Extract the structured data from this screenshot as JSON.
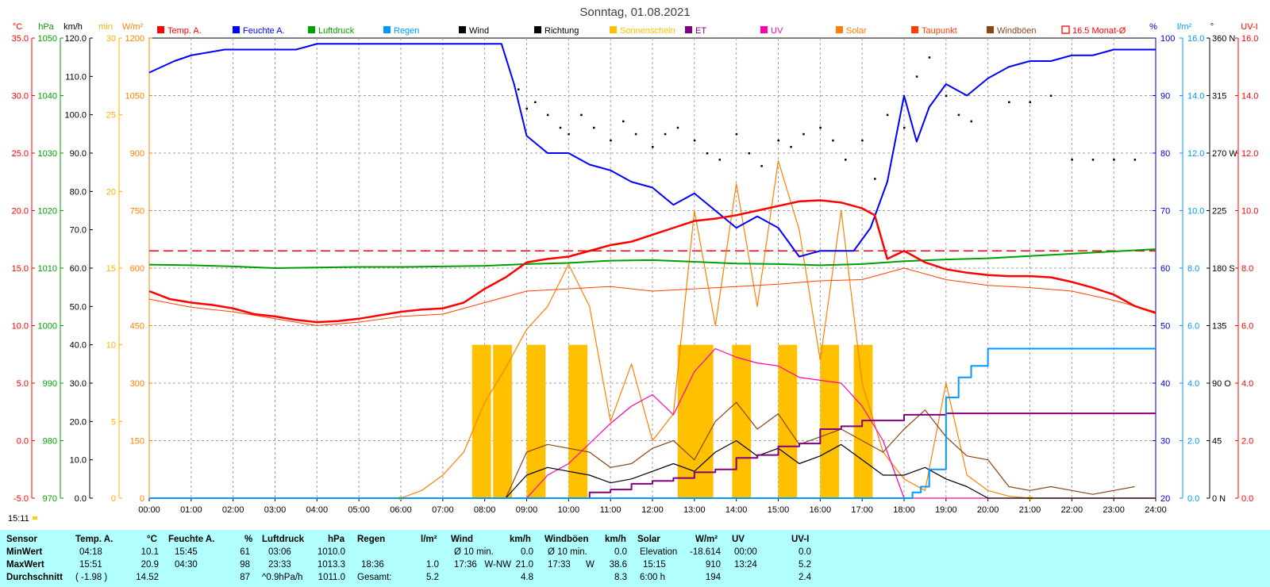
{
  "chart_data": {
    "type": "line",
    "title": "Sonntag, 01.08.2021",
    "legend": [
      {
        "name": "Temp. A.",
        "color": "#ff0000"
      },
      {
        "name": "Feuchte A.",
        "color": "#0000ff"
      },
      {
        "name": "Luftdruck",
        "color": "#00a000"
      },
      {
        "name": "Regen",
        "color": "#0099ff"
      },
      {
        "name": "Wind",
        "color": "#000000"
      },
      {
        "name": "Richtung",
        "color": "#000000"
      },
      {
        "name": "Sonnenschein",
        "color": "#ffc000"
      },
      {
        "name": "ET",
        "color": "#800080"
      },
      {
        "name": "UV",
        "color": "#ff00aa"
      },
      {
        "name": "Solar",
        "color": "#ff8000"
      },
      {
        "name": "Taupunkt",
        "color": "#ff4000"
      },
      {
        "name": "Windböen",
        "color": "#8b4513"
      },
      {
        "name": "16.5 Monat-Ø",
        "color": "#ff0000"
      }
    ],
    "x_ticks": [
      "00:00",
      "01:00",
      "02:00",
      "03:00",
      "04:00",
      "05:00",
      "06:00",
      "07:00",
      "08:00",
      "09:00",
      "10:00",
      "11:00",
      "12:00",
      "13:00",
      "14:00",
      "15:00",
      "16:00",
      "17:00",
      "18:00",
      "19:00",
      "20:00",
      "21:00",
      "22:00",
      "23:00",
      "24:00"
    ],
    "left_axes": [
      {
        "unit": "°C",
        "color": "#ff0000",
        "ticks": [
          "35.0",
          "30.0",
          "25.0",
          "20.0",
          "15.0",
          "10.0",
          "5.0",
          "0.0",
          "-5.0"
        ]
      },
      {
        "unit": "hPa",
        "color": "#00a000",
        "ticks": [
          "1050",
          "1040",
          "1030",
          "1020",
          "1010",
          "1000",
          "990",
          "980",
          "970"
        ]
      },
      {
        "unit": "km/h",
        "color": "#000000",
        "ticks": [
          "120.0",
          "110.0",
          "100.0",
          "90.0",
          "80.0",
          "70.0",
          "60.0",
          "50.0",
          "40.0",
          "30.0",
          "20.0",
          "10.0",
          "0.0"
        ]
      },
      {
        "unit": "min",
        "color": "#ffb000",
        "ticks": [
          "30",
          "25",
          "20",
          "15",
          "10",
          "5",
          "0"
        ]
      },
      {
        "unit": "W/m²",
        "color": "#ff8000",
        "ticks": [
          "1200",
          "1050",
          "900",
          "750",
          "600",
          "450",
          "300",
          "150",
          "0"
        ]
      }
    ],
    "right_axes": [
      {
        "unit": "%",
        "color": "#0000c0",
        "ticks": [
          "100",
          "90",
          "80",
          "70",
          "60",
          "50",
          "40",
          "30",
          "20"
        ]
      },
      {
        "unit": "l/m²",
        "color": "#0099ff",
        "ticks": [
          "16.0",
          "14.0",
          "12.0",
          "10.0",
          "8.0",
          "6.0",
          "4.0",
          "2.0",
          "0.0"
        ]
      },
      {
        "unit": "°",
        "color": "#000000",
        "ticks": [
          "360 N",
          "315",
          "270 W",
          "225",
          "180 S",
          "135",
          "90 O",
          "45",
          "0 N"
        ]
      },
      {
        "unit": "UV-I",
        "color": "#ff0000",
        "ticks": [
          "16.0",
          "14.0",
          "12.0",
          "10.0",
          "8.0",
          "6.0",
          "4.0",
          "2.0",
          "0.0"
        ]
      }
    ],
    "grid": true,
    "month_avg_temp": 16.5,
    "series": [
      {
        "name": "Temp. A.",
        "unit": "°C",
        "x": [
          0,
          0.5,
          1,
          1.5,
          2,
          2.5,
          3,
          3.5,
          4,
          4.5,
          5,
          5.5,
          6,
          6.5,
          7,
          7.5,
          8,
          8.5,
          9,
          9.5,
          10,
          10.5,
          11,
          11.5,
          12,
          12.5,
          13,
          13.5,
          14,
          14.5,
          15,
          15.5,
          16,
          16.5,
          17,
          17.3,
          17.6,
          18,
          18.5,
          19,
          19.5,
          20,
          20.5,
          21,
          21.5,
          22,
          22.5,
          23,
          23.5,
          24
        ],
        "y": [
          13.0,
          12.3,
          12.0,
          11.8,
          11.5,
          11.0,
          10.8,
          10.5,
          10.3,
          10.4,
          10.6,
          10.9,
          11.2,
          11.4,
          11.5,
          12.0,
          13.2,
          14.2,
          15.5,
          15.8,
          16.0,
          16.5,
          17.0,
          17.3,
          17.9,
          18.5,
          19.1,
          19.3,
          19.6,
          20.0,
          20.4,
          20.8,
          20.9,
          20.7,
          20.2,
          19.6,
          15.8,
          16.5,
          15.5,
          14.9,
          14.6,
          14.4,
          14.3,
          14.3,
          14.2,
          13.8,
          13.3,
          12.7,
          11.7,
          11.1
        ]
      },
      {
        "name": "Feuchte A.",
        "unit": "%",
        "x": [
          0,
          0.3,
          0.6,
          1,
          1.8,
          2.5,
          3,
          3.5,
          4,
          4.5,
          5,
          5.5,
          6,
          6.5,
          7,
          7.5,
          8,
          8.4,
          8.7,
          9,
          9.5,
          10,
          10.5,
          11,
          11.5,
          12,
          12.5,
          13,
          13.5,
          14,
          14.5,
          15,
          15.5,
          16,
          16.5,
          16.8,
          17.2,
          17.6,
          18,
          18.3,
          18.6,
          19,
          19.5,
          20,
          20.5,
          21,
          21.5,
          22,
          22.5,
          23,
          23.5,
          24
        ],
        "y": [
          94,
          95,
          96,
          97,
          98,
          98,
          98,
          98,
          99,
          99,
          99,
          99,
          99,
          99,
          99,
          99,
          99,
          99,
          92,
          83,
          80,
          80,
          78,
          77,
          75,
          74,
          71,
          73,
          70,
          67,
          69,
          67,
          62,
          63,
          63,
          63,
          67,
          75,
          90,
          82,
          88,
          92,
          90,
          93,
          95,
          96,
          96,
          97,
          97,
          98,
          98,
          98
        ]
      },
      {
        "name": "Luftdruck",
        "unit": "hPa",
        "x": [
          0,
          1,
          2,
          3,
          4,
          5,
          6,
          7,
          8,
          9,
          10,
          11,
          12,
          13,
          14,
          15,
          16,
          17,
          18,
          19,
          20,
          21,
          22,
          23,
          24
        ],
        "y": [
          1010.6,
          1010.5,
          1010.3,
          1010.0,
          1010.1,
          1010.2,
          1010.2,
          1010.3,
          1010.4,
          1010.7,
          1010.9,
          1011.3,
          1011.4,
          1011.1,
          1010.8,
          1010.7,
          1010.5,
          1010.7,
          1011.2,
          1011.5,
          1011.7,
          1012.1,
          1012.5,
          1012.9,
          1013.3
        ]
      },
      {
        "name": "Regen",
        "unit": "l/m²",
        "x": [
          0,
          18,
          18.2,
          18.4,
          18.6,
          19,
          19.3,
          19.6,
          20,
          24
        ],
        "y": [
          0,
          0,
          0.2,
          0.4,
          1.0,
          3.5,
          4.2,
          4.6,
          5.2,
          5.2
        ]
      },
      {
        "name": "Windböen",
        "unit": "km/h",
        "x": [
          0,
          8.5,
          9,
          9.5,
          10,
          10.5,
          11,
          11.5,
          12,
          12.5,
          13,
          13.5,
          14,
          14.5,
          15,
          15.5,
          16,
          16.5,
          17,
          17.5,
          18,
          18.5,
          19,
          19.5,
          20,
          20.5,
          21,
          21.5,
          22,
          22.5,
          23,
          23.5
        ],
        "y": [
          0,
          0,
          12,
          14,
          13,
          12,
          8,
          9,
          13,
          15,
          10,
          20,
          25,
          18,
          22,
          14,
          16,
          18,
          15,
          12,
          18,
          23,
          16,
          11,
          10,
          3,
          2,
          3,
          2,
          1,
          2,
          3
        ]
      },
      {
        "name": "Wind",
        "unit": "km/h",
        "x": [
          0,
          8.5,
          9,
          9.5,
          10,
          10.5,
          11,
          11.5,
          12,
          12.5,
          13,
          13.5,
          14,
          14.5,
          15,
          15.5,
          16,
          16.5,
          17,
          17.5,
          18,
          18.5,
          19,
          19.5,
          20,
          24
        ],
        "y": [
          0,
          0,
          6,
          8,
          7,
          6,
          4,
          5,
          7,
          9,
          7,
          12,
          15,
          11,
          13,
          9,
          11,
          14,
          10,
          6,
          6,
          8,
          5,
          3,
          0,
          0
        ]
      },
      {
        "name": "Solar",
        "unit": "W/m²",
        "x": [
          0,
          6,
          6.5,
          7,
          7.5,
          8,
          8.5,
          9,
          9.5,
          10,
          10.5,
          11,
          11.5,
          12,
          12.5,
          13,
          13.5,
          14,
          14.5,
          15,
          15.5,
          16,
          16.5,
          17,
          17.5,
          18,
          18.5,
          19,
          19.5,
          20,
          20.5,
          21,
          21.5,
          24
        ],
        "y": [
          0,
          0,
          20,
          60,
          120,
          250,
          340,
          440,
          500,
          610,
          500,
          200,
          350,
          150,
          220,
          750,
          450,
          820,
          500,
          880,
          700,
          360,
          750,
          300,
          120,
          50,
          20,
          300,
          60,
          20,
          5,
          0,
          0,
          0
        ]
      },
      {
        "name": "Taupunkt",
        "unit": "°C",
        "x": [
          0,
          1,
          2,
          3,
          4,
          5,
          6,
          7,
          8,
          9,
          10,
          11,
          12,
          13,
          14,
          15,
          16,
          17,
          18,
          19,
          20,
          21,
          22,
          23,
          24
        ],
        "y": [
          12.3,
          11.6,
          11.2,
          10.6,
          10.0,
          10.3,
          10.8,
          11.0,
          12.0,
          13.0,
          13.2,
          13.4,
          13.0,
          13.2,
          13.4,
          13.6,
          13.9,
          14.0,
          15.0,
          14.0,
          13.5,
          13.3,
          13.0,
          12.2,
          11.2
        ]
      },
      {
        "name": "UV",
        "unit": "UV-I",
        "x": [
          0,
          9,
          9.5,
          10,
          10.5,
          11,
          11.5,
          12,
          12.5,
          13,
          13.5,
          14,
          14.5,
          15,
          15.5,
          16,
          16.5,
          17,
          17.5,
          18,
          24
        ],
        "y": [
          0,
          0,
          0.8,
          1.2,
          1.9,
          2.6,
          3.2,
          3.6,
          2.9,
          4.4,
          5.2,
          4.9,
          4.7,
          4.6,
          4.2,
          4.1,
          4.0,
          3.2,
          2.0,
          0.0,
          0.0
        ]
      },
      {
        "name": "ET",
        "unit": "l/m²",
        "x": [
          0,
          10,
          10.5,
          11,
          11.5,
          12,
          12.5,
          13,
          13.5,
          14,
          14.5,
          15,
          15.5,
          16,
          16.5,
          17,
          17.5,
          18,
          18.5,
          19,
          24
        ],
        "y": [
          0,
          0,
          0.2,
          0.3,
          0.5,
          0.6,
          0.7,
          0.9,
          1.0,
          1.4,
          1.5,
          1.8,
          1.9,
          2.4,
          2.5,
          2.7,
          2.7,
          2.9,
          2.9,
          2.95,
          2.95
        ]
      },
      {
        "name": "Sonnenschein",
        "unit": "min",
        "x": [
          7.7,
          8.2,
          9.0,
          10.0,
          12.6,
          13.0,
          13.9,
          15.0,
          16.0,
          16.8
        ],
        "y": [
          10,
          10,
          10,
          10,
          10,
          10,
          10,
          10,
          10,
          10
        ]
      },
      {
        "name": "Richtung",
        "unit": "°",
        "x": [
          8.8,
          9.0,
          9.2,
          9.5,
          9.8,
          10.0,
          10.3,
          10.6,
          11.0,
          11.3,
          11.6,
          12.0,
          12.3,
          12.6,
          13.0,
          13.3,
          13.6,
          14.0,
          14.3,
          14.6,
          15.0,
          15.3,
          15.6,
          16.0,
          16.3,
          16.6,
          17.0,
          17.3,
          17.6,
          18.0,
          18.3,
          18.6,
          19.0,
          19.3,
          19.6,
          20.5,
          21.0,
          21.5,
          22.0,
          22.5,
          23.0,
          23.5
        ],
        "y": [
          320,
          305,
          310,
          300,
          290,
          285,
          300,
          290,
          280,
          295,
          285,
          275,
          285,
          290,
          280,
          270,
          265,
          285,
          270,
          260,
          280,
          275,
          285,
          290,
          280,
          265,
          280,
          250,
          300,
          290,
          330,
          345,
          315,
          300,
          295,
          310,
          310,
          315,
          265,
          265,
          265,
          265
        ]
      }
    ]
  },
  "ui": {
    "time_label": "15:11"
  },
  "stats": {
    "row_labels": [
      "Sensor",
      "MinWert",
      "MaxWert",
      "Durchschnitt"
    ],
    "temp": {
      "head": "Temp. A.",
      "unit": "°C",
      "rows": [
        [
          "04:18",
          "10.1"
        ],
        [
          "15:51",
          "20.9"
        ],
        [
          "( -1.98 )",
          "14.52"
        ]
      ]
    },
    "hum": {
      "head": "Feuchte A.",
      "unit": "%",
      "rows": [
        [
          "15:45",
          "61"
        ],
        [
          "04:30",
          "98"
        ],
        [
          "",
          "87"
        ]
      ]
    },
    "press": {
      "head": "Luftdruck",
      "unit": "hPa",
      "rows": [
        [
          "03:06",
          "1010.0"
        ],
        [
          "23:33",
          "1013.3"
        ],
        [
          "^0.9hPa/h",
          "1011.0"
        ]
      ]
    },
    "rain": {
      "head": "Regen",
      "unit": "l/m²",
      "rows": [
        [
          "",
          ""
        ],
        [
          "18:36",
          "1.0"
        ],
        [
          "Gesamt:",
          "5.2"
        ]
      ]
    },
    "wind": {
      "head": "Wind",
      "unit": "km/h",
      "rows": [
        [
          "Ø 10 min.",
          "0.0"
        ],
        [
          "17:36   W-NW",
          "21.0"
        ],
        [
          "",
          "4.8"
        ]
      ]
    },
    "gust": {
      "head": "Windböen",
      "unit": "km/h",
      "rows": [
        [
          "Ø 10 min.",
          "0.0"
        ],
        [
          "17:33      W",
          "38.6"
        ],
        [
          "",
          "8.3"
        ]
      ]
    },
    "solar": {
      "head": "Solar",
      "unit": "W/m²",
      "rows": [
        [
          "Elevation",
          "-18.614"
        ],
        [
          "15:15",
          "910"
        ],
        [
          "6:00 h",
          "194"
        ]
      ]
    },
    "uv": {
      "head": "UV",
      "unit": "UV-I",
      "rows": [
        [
          "00:00",
          "0.0"
        ],
        [
          "13:24",
          "5.2"
        ],
        [
          "",
          "2.4"
        ]
      ]
    }
  }
}
